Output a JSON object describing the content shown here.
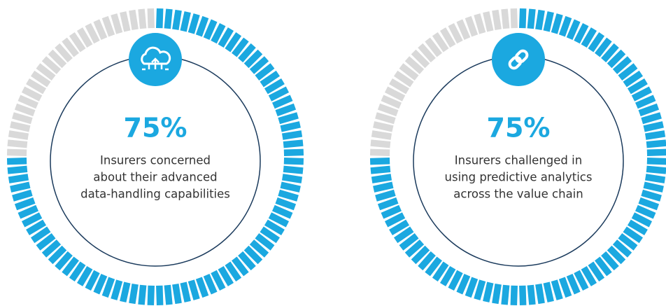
{
  "chart_data": [
    {
      "type": "gauge",
      "values": [
        75
      ],
      "value_labels": [
        "75%"
      ],
      "caption": [
        "Insurers concerned",
        "about their advanced",
        "data-handling capabilities"
      ],
      "ylim": [
        0,
        100
      ],
      "color": "#1ba8e0",
      "track_color": "#d9d9d9"
    },
    {
      "type": "gauge",
      "values": [
        75
      ],
      "value_labels": [
        "75%"
      ],
      "caption": [
        "Insurers challenged in",
        "using predictive analytics",
        "across the value chain"
      ],
      "ylim": [
        0,
        100
      ],
      "color": "#1ba8e0",
      "track_color": "#d9d9d9"
    }
  ]
}
